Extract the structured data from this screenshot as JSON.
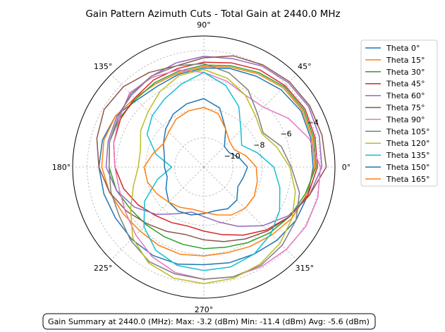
{
  "chart_data": {
    "type": "polar-line",
    "title": "Gain Pattern Azimuth Cuts - Total Gain at 2440.0 MHz",
    "angle_ticks": [
      "0°",
      "45°",
      "90°",
      "135°",
      "180°",
      "225°",
      "270°",
      "315°"
    ],
    "radial_ticks": [
      "−10",
      "−8",
      "−6",
      "−4"
    ],
    "radial_tick_values": [
      -10,
      -8,
      -6,
      -4
    ],
    "r_min": -12.0,
    "r_max": -3.0,
    "grid": true,
    "legend_position": "right",
    "angles_deg": [
      0,
      15,
      30,
      45,
      60,
      75,
      90,
      105,
      120,
      135,
      150,
      165,
      180,
      195,
      210,
      225,
      240,
      255,
      270,
      285,
      300,
      315,
      330,
      345
    ],
    "series": [
      {
        "name": "Theta 0°",
        "color": "#1f77b4",
        "values": [
          -4.5,
          -4.4,
          -4.3,
          -4.5,
          -4.8,
          -5.0,
          -5.2,
          -5.4,
          -5.6,
          -5.5,
          -5.0,
          -4.8,
          -4.8,
          -4.9,
          -5.0,
          -5.0,
          -5.0,
          -5.1,
          -5.3,
          -5.2,
          -5.1,
          -4.9,
          -4.7,
          -4.6
        ]
      },
      {
        "name": "Theta 15°",
        "color": "#ff7f0e",
        "values": [
          -4.4,
          -4.3,
          -4.2,
          -4.3,
          -4.6,
          -4.9,
          -5.1,
          -5.3,
          -5.4,
          -5.3,
          -5.0,
          -4.9,
          -5.0,
          -5.3,
          -5.6,
          -5.8,
          -5.8,
          -5.8,
          -5.9,
          -5.9,
          -5.7,
          -5.4,
          -5.0,
          -4.7
        ]
      },
      {
        "name": "Theta 30°",
        "color": "#2ca02c",
        "values": [
          -4.3,
          -4.2,
          -4.1,
          -4.2,
          -4.5,
          -4.8,
          -5.0,
          -5.2,
          -5.3,
          -5.4,
          -5.3,
          -5.3,
          -5.5,
          -5.8,
          -6.2,
          -6.4,
          -6.5,
          -6.5,
          -6.4,
          -6.3,
          -6.0,
          -5.6,
          -5.2,
          -4.8
        ]
      },
      {
        "name": "Theta 45°",
        "color": "#d62728",
        "values": [
          -4.2,
          -4.1,
          -4.0,
          -4.1,
          -4.3,
          -4.6,
          -4.8,
          -5.0,
          -5.1,
          -5.3,
          -5.4,
          -5.6,
          -5.9,
          -6.3,
          -6.8,
          -7.3,
          -7.6,
          -7.8,
          -7.6,
          -7.2,
          -6.6,
          -5.9,
          -5.2,
          -4.6
        ]
      },
      {
        "name": "Theta 60°",
        "color": "#9467bd",
        "values": [
          -3.9,
          -3.8,
          -3.7,
          -3.8,
          -4.0,
          -4.3,
          -4.4,
          -4.6,
          -4.8,
          -5.0,
          -5.1,
          -5.2,
          -5.3,
          -5.8,
          -6.5,
          -7.4,
          -8.3,
          -8.8,
          -8.6,
          -8.1,
          -7.3,
          -6.3,
          -5.3,
          -4.5
        ]
      },
      {
        "name": "Theta 75°",
        "color": "#8c564b",
        "values": [
          -3.6,
          -3.6,
          -3.6,
          -3.7,
          -3.9,
          -4.1,
          -4.5,
          -4.8,
          -4.5,
          -4.2,
          -4.1,
          -4.4,
          -4.8,
          -5.3,
          -5.9,
          -6.5,
          -6.9,
          -7.2,
          -7.0,
          -6.7,
          -6.3,
          -5.8,
          -5.2,
          -4.5
        ]
      },
      {
        "name": "Theta 90°",
        "color": "#e377c2",
        "values": [
          -4.0,
          -4.5,
          -5.3,
          -6.2,
          -6.3,
          -5.9,
          -5.5,
          -5.1,
          -4.9,
          -4.8,
          -5.3,
          -5.6,
          -5.9,
          -6.0,
          -5.8,
          -5.4,
          -4.9,
          -4.5,
          -4.3,
          -4.2,
          -4.1,
          -4.0,
          -3.9,
          -3.9
        ]
      },
      {
        "name": "Theta 105°",
        "color": "#7f7f7f",
        "values": [
          -6.0,
          -6.5,
          -7.3,
          -6.8,
          -5.9,
          -5.3,
          -4.9,
          -4.8,
          -4.8,
          -4.9,
          -5.2,
          -5.3,
          -5.5,
          -5.4,
          -5.3,
          -4.9,
          -4.5,
          -4.4,
          -4.3,
          -4.2,
          -4.2,
          -4.4,
          -4.7,
          -5.2
        ]
      },
      {
        "name": "Theta 120°",
        "color": "#bcbd22",
        "values": [
          -6.1,
          -6.8,
          -7.4,
          -7.0,
          -6.3,
          -5.7,
          -5.3,
          -5.5,
          -6.0,
          -6.6,
          -7.0,
          -7.5,
          -7.5,
          -7.0,
          -6.2,
          -5.1,
          -4.4,
          -4.1,
          -4.0,
          -4.1,
          -4.3,
          -4.6,
          -5.0,
          -5.5
        ]
      },
      {
        "name": "Theta 135°",
        "color": "#17becf",
        "values": [
          -7.2,
          -8.2,
          -9.0,
          -8.4,
          -7.2,
          -6.2,
          -5.5,
          -6.1,
          -6.6,
          -7.0,
          -7.5,
          -8.6,
          -9.8,
          -8.7,
          -7.3,
          -6.2,
          -5.4,
          -5.0,
          -4.9,
          -4.9,
          -5.1,
          -5.5,
          -6.0,
          -6.6
        ]
      },
      {
        "name": "Theta 150°",
        "color": "#1f77b4",
        "values": [
          -9.0,
          -9.5,
          -10.0,
          -10.0,
          -9.0,
          -7.8,
          -7.3,
          -7.5,
          -7.8,
          -8.3,
          -8.8,
          -9.2,
          -9.3,
          -9.4,
          -9.0,
          -8.6,
          -8.5,
          -8.6,
          -8.8,
          -8.9,
          -8.7,
          -8.8,
          -9.3,
          -9.2
        ]
      },
      {
        "name": "Theta 165°",
        "color": "#ff7f0e",
        "values": [
          -8.4,
          -9.0,
          -9.6,
          -9.5,
          -9.0,
          -8.2,
          -7.9,
          -8.0,
          -8.2,
          -8.6,
          -8.8,
          -8.4,
          -7.9,
          -8.0,
          -8.3,
          -8.6,
          -8.8,
          -9.0,
          -8.9,
          -8.6,
          -8.2,
          -8.0,
          -8.0,
          -8.2
        ]
      }
    ]
  },
  "summary": {
    "text": "Gain Summary at 2440.0 (MHz): Max: -3.2 (dBm) Min: -11.4 (dBm) Avg: -5.6 (dBm)"
  }
}
